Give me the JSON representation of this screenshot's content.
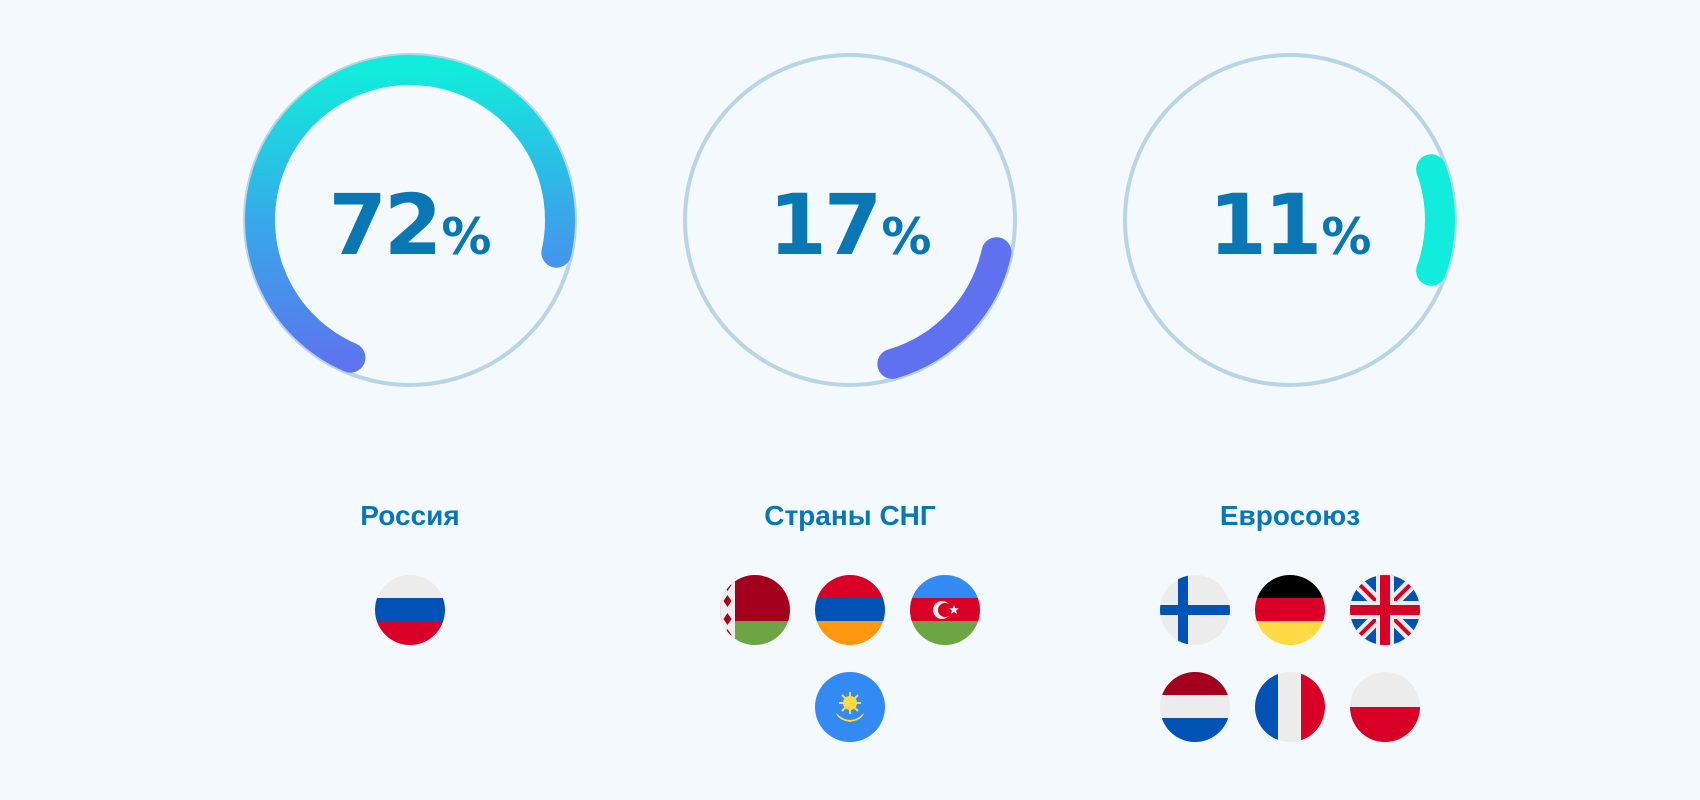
{
  "chart_data": {
    "type": "radial-progress",
    "segments": [
      {
        "region": "Россия",
        "value": 72,
        "unit": "%",
        "flags": [
          "russia-flag"
        ]
      },
      {
        "region": "Страны СНГ",
        "value": 17,
        "unit": "%",
        "flags": [
          "belarus-flag",
          "armenia-flag",
          "azerbaijan-flag",
          "kazakhstan-flag"
        ]
      },
      {
        "region": "Евросоюз",
        "value": 11,
        "unit": "%",
        "flags": [
          "finland-flag",
          "germany-flag",
          "uk-flag",
          "netherlands-flag",
          "france-flag",
          "poland-flag"
        ]
      }
    ]
  },
  "colors": {
    "track": "#b7d5e4",
    "gradient_start": "#12ecdc",
    "gradient_mid": "#38a7ea",
    "gradient_end": "#5f71ee",
    "text": "#0a77b5",
    "background": "#f3f9fc"
  }
}
